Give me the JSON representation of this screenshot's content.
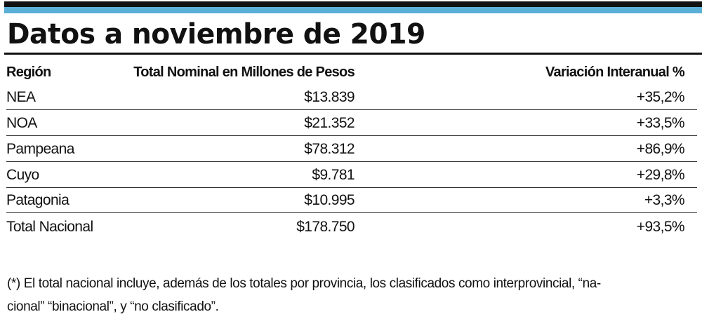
{
  "title": "Datos a noviembre de 2019",
  "table": {
    "headers": [
      "Región",
      "Total Nominal en Millones de Pesos",
      "Variación Interanual %"
    ],
    "rows": [
      [
        "NEA",
        "$13.839",
        "+35,2%"
      ],
      [
        "NOA",
        "$21.352",
        "+33,5%"
      ],
      [
        "Pampeana",
        "$78.312",
        "+86,9%"
      ],
      [
        "Cuyo",
        "$9.781",
        "+29,8%"
      ],
      [
        "Patagonia",
        "$10.995",
        "+3,3%"
      ],
      [
        "Total Nacional",
        "$178.750",
        "+93,5%"
      ]
    ]
  },
  "footnote": {
    "line1": "(*) El total nacional incluye, además de los totales por provincia, los clasificados como interprovincial, “na-",
    "line2": "cional” “binacional”, y “no clasificado”."
  },
  "colors": {
    "accent": "#5aafd6",
    "rule": "#111111"
  }
}
